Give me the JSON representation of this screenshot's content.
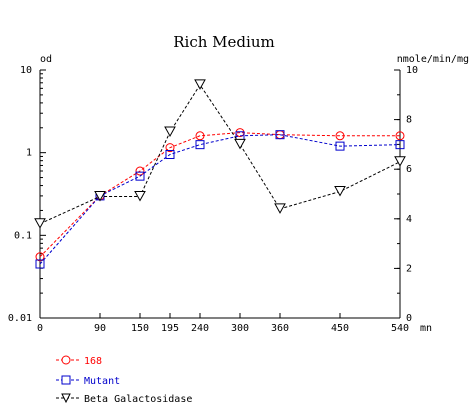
{
  "chart_data": {
    "type": "line",
    "title": "Rich Medium",
    "left_axis_label": "od",
    "right_axis_label": "nmole/min/mg",
    "x_unit_label": "mn",
    "left_scale": "log",
    "left_ylim": [
      0.01,
      10
    ],
    "left_ticks": [
      "10",
      "1",
      "0.1",
      "0.01"
    ],
    "right_ylim": [
      0,
      10
    ],
    "right_ticks": [
      "10",
      "8",
      "6",
      "4",
      "2",
      "0"
    ],
    "xlim": [
      0,
      540
    ],
    "x_ticks": [
      "0",
      "90",
      "150",
      "195",
      "240",
      "300",
      "360",
      "450",
      "540"
    ],
    "x": [
      0,
      90,
      150,
      195,
      240,
      300,
      360,
      450,
      540
    ],
    "series": [
      {
        "name": "168",
        "axis": "left",
        "marker": "circle",
        "color": "#ff0000",
        "values": [
          0.055,
          0.3,
          0.6,
          1.15,
          1.6,
          1.75,
          1.65,
          1.6,
          1.6
        ]
      },
      {
        "name": "Mutant",
        "axis": "left",
        "marker": "square",
        "color": "#0000cc",
        "values": [
          0.045,
          0.3,
          0.52,
          0.95,
          1.25,
          1.6,
          1.65,
          1.2,
          1.25
        ]
      },
      {
        "name": "Beta Galactosidase",
        "axis": "right",
        "marker": "triangle-down",
        "color": "#000000",
        "values": [
          3.8,
          4.9,
          4.9,
          7.5,
          9.4,
          7.0,
          4.4,
          5.1,
          6.3
        ]
      }
    ]
  }
}
